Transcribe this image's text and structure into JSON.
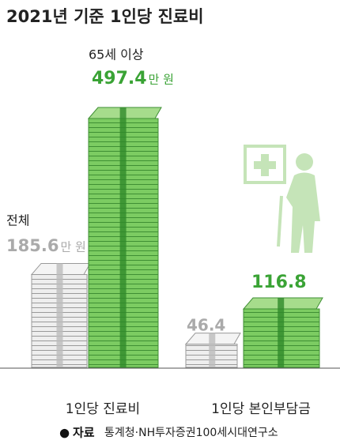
{
  "chart_data": {
    "type": "bar",
    "title": "2021년 기준 1인당 진료비",
    "unit": "만 원",
    "categories": [
      "1인당 진료비",
      "1인당 본인부담금"
    ],
    "series": [
      {
        "name": "전체",
        "color": "#c8c8c8",
        "values": [
          185.6,
          46.4
        ]
      },
      {
        "name": "65세 이상",
        "color": "#5fb84a",
        "values": [
          497.4,
          116.8
        ]
      }
    ],
    "source_label": "자료",
    "source_text": "통계청·NH투자증권100세시대연구소"
  }
}
